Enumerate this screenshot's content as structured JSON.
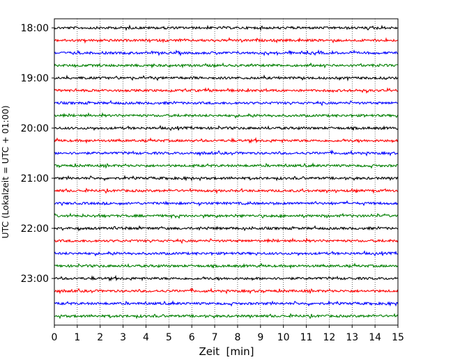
{
  "chart_data": {
    "type": "line",
    "subtype": "seismogram-helicorder",
    "xlabel": "Zeit  [min]",
    "ylabel": "UTC (Lokalzeit = UTC + 01:00)",
    "xlim": [
      0,
      15
    ],
    "x_ticks": [
      "0",
      "1",
      "2",
      "3",
      "4",
      "5",
      "6",
      "7",
      "8",
      "9",
      "10",
      "11",
      "12",
      "13",
      "14",
      "15"
    ],
    "y_ticks": [
      "18:00",
      "19:00",
      "20:00",
      "21:00",
      "22:00",
      "23:00"
    ],
    "grid": "vertical-dotted",
    "trace_colors": [
      "#000000",
      "#ff0000",
      "#0000ff",
      "#007f00"
    ],
    "traces": [
      {
        "start": "18:00",
        "color": "#000000"
      },
      {
        "start": "18:15",
        "color": "#ff0000"
      },
      {
        "start": "18:30",
        "color": "#0000ff"
      },
      {
        "start": "18:45",
        "color": "#007f00"
      },
      {
        "start": "19:00",
        "color": "#000000"
      },
      {
        "start": "19:15",
        "color": "#ff0000"
      },
      {
        "start": "19:30",
        "color": "#0000ff"
      },
      {
        "start": "19:45",
        "color": "#007f00"
      },
      {
        "start": "20:00",
        "color": "#000000"
      },
      {
        "start": "20:15",
        "color": "#ff0000"
      },
      {
        "start": "20:30",
        "color": "#0000ff"
      },
      {
        "start": "20:45",
        "color": "#007f00"
      },
      {
        "start": "21:00",
        "color": "#000000"
      },
      {
        "start": "21:15",
        "color": "#ff0000"
      },
      {
        "start": "21:30",
        "color": "#0000ff"
      },
      {
        "start": "21:45",
        "color": "#007f00"
      },
      {
        "start": "22:00",
        "color": "#000000"
      },
      {
        "start": "22:15",
        "color": "#ff0000"
      },
      {
        "start": "22:30",
        "color": "#0000ff"
      },
      {
        "start": "22:45",
        "color": "#007f00"
      },
      {
        "start": "23:00",
        "color": "#000000"
      },
      {
        "start": "23:15",
        "color": "#ff0000"
      },
      {
        "start": "23:30",
        "color": "#0000ff"
      },
      {
        "start": "23:45",
        "color": "#007f00"
      }
    ]
  }
}
